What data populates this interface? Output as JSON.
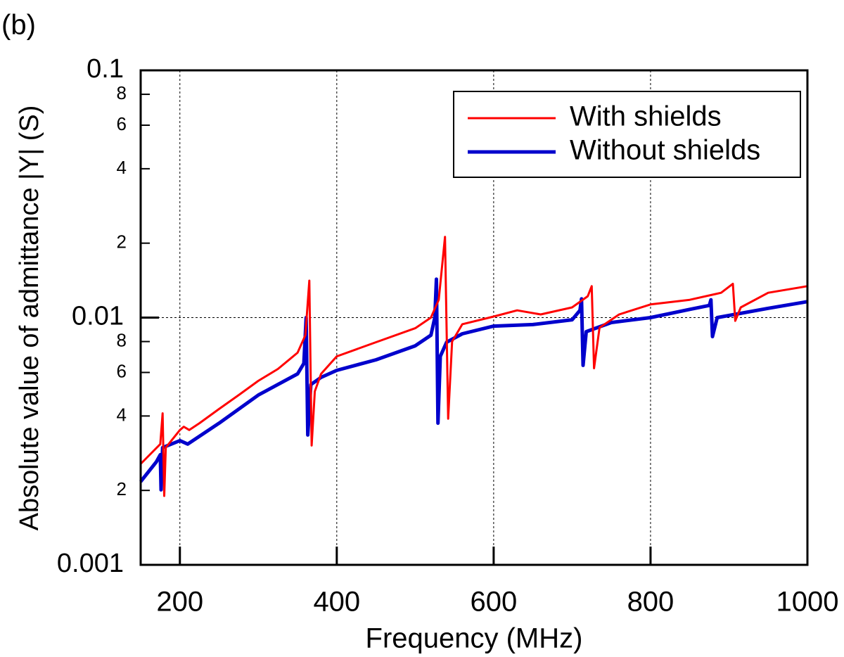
{
  "chart_data": {
    "type": "line",
    "panel_label": "(b)",
    "x_label": "Frequency (MHz)",
    "y_label": "Absolute value of admittance |Y| (S)",
    "xlim": [
      150,
      1000
    ],
    "xticks": [
      200,
      400,
      600,
      800,
      1000
    ],
    "ylim": [
      0.001,
      0.1
    ],
    "log_y": true,
    "yticks": [
      0.001,
      {
        "value": 0.002,
        "label": "2"
      },
      {
        "value": 0.004,
        "label": "4"
      },
      {
        "value": 0.006,
        "label": "6"
      },
      {
        "value": 0.008,
        "label": "8"
      },
      0.01,
      {
        "value": 0.02,
        "label": "2"
      },
      {
        "value": 0.04,
        "label": "4"
      },
      {
        "value": 0.06,
        "label": "6"
      },
      {
        "value": 0.08,
        "label": "8"
      },
      0.1
    ],
    "grid": true,
    "legend": "upper right",
    "series": [
      {
        "name": "With shields",
        "color": "#ff0000",
        "x": [
          150,
          175,
          178,
          180,
          182,
          200,
          205,
          212,
          225,
          250,
          275,
          300,
          325,
          350,
          360,
          365,
          368,
          372,
          380,
          400,
          450,
          500,
          520,
          530,
          538,
          542,
          547,
          560,
          600,
          630,
          660,
          700,
          720,
          725,
          728,
          735,
          760,
          800,
          850,
          890,
          905,
          908,
          915,
          950,
          1000
        ],
        "values": [
          0.00256,
          0.00308,
          0.0041,
          0.0019,
          0.00298,
          0.00351,
          0.00362,
          0.00351,
          0.00374,
          0.00427,
          0.00486,
          0.00555,
          0.0062,
          0.00721,
          0.00849,
          0.0141,
          0.00304,
          0.00503,
          0.00592,
          0.00697,
          0.00795,
          0.00906,
          0.01,
          0.0118,
          0.0212,
          0.0039,
          0.008,
          0.0094,
          0.0101,
          0.0107,
          0.0103,
          0.011,
          0.0122,
          0.0134,
          0.00624,
          0.0091,
          0.0103,
          0.0113,
          0.0118,
          0.0126,
          0.0137,
          0.0097,
          0.011,
          0.0126,
          0.0134
        ]
      },
      {
        "name": "Without shields",
        "color": "#0000cc",
        "x": [
          150,
          170,
          175,
          176,
          178,
          200,
          210,
          250,
          300,
          350,
          358,
          361,
          363,
          367,
          380,
          400,
          450,
          500,
          520,
          525,
          527,
          529,
          532,
          540,
          560,
          600,
          650,
          700,
          710,
          712,
          714,
          718,
          750,
          800,
          850,
          875,
          877,
          879,
          885,
          950,
          1000
        ],
        "values": [
          0.00217,
          0.00261,
          0.00279,
          0.00201,
          0.00298,
          0.00318,
          0.00308,
          0.00374,
          0.00486,
          0.00592,
          0.00653,
          0.01,
          0.00335,
          0.00536,
          0.00573,
          0.00612,
          0.00675,
          0.00769,
          0.00849,
          0.01,
          0.0143,
          0.00374,
          0.00697,
          0.00795,
          0.0086,
          0.00924,
          0.00937,
          0.0098,
          0.0107,
          0.0119,
          0.00641,
          0.00877,
          0.00955,
          0.01,
          0.0108,
          0.0112,
          0.0118,
          0.00838,
          0.01,
          0.0109,
          0.0116
        ]
      }
    ]
  }
}
